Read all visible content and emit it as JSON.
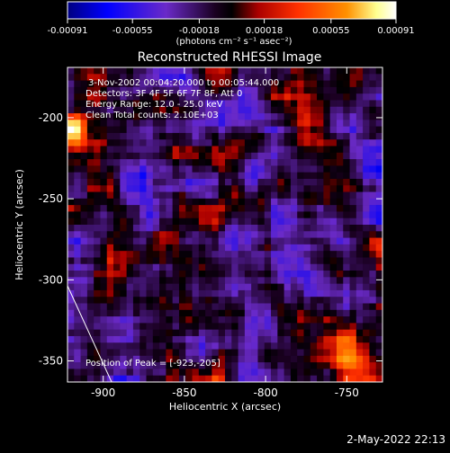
{
  "chart_data": {
    "type": "heatmap",
    "title": "Reconstructed RHESSI Image",
    "xlabel": "Heliocentric X (arcsec)",
    "ylabel": "Heliocentric Y (arcsec)",
    "xlim": [
      -922,
      -728
    ],
    "ylim": [
      -363,
      -169
    ],
    "x_ticks": [
      -900,
      -850,
      -800,
      -750
    ],
    "y_ticks": [
      -200,
      -250,
      -300,
      -350
    ],
    "x_tick_labels": [
      "-900",
      "-850",
      "-800",
      "-750"
    ],
    "y_tick_labels": [
      "-200",
      "-250",
      "-300",
      "-350"
    ],
    "colorbar": {
      "range": [
        -0.00091,
        0.00091
      ],
      "tick_values": [
        -0.00091,
        -0.00055,
        -0.00018,
        0.00018,
        0.00055,
        0.00091
      ],
      "tick_labels": [
        "-0.00091",
        "-0.00055",
        "-0.00018",
        "0.00018",
        "0.00055",
        "0.00091"
      ],
      "unit_label": "(photons cm⁻² s⁻¹ asec⁻²)",
      "colors": [
        "#000080",
        "#0000ff",
        "#6a2ac8",
        "#000000",
        "#aa0000",
        "#ff3000",
        "#ff9000",
        "#ffff90",
        "#ffffff"
      ]
    },
    "annotations": {
      "time_range": "3-Nov-2002 00:04:20.000 to 00:05:44.000",
      "detectors": "Detectors: 3F 4F 5F 6F 7F 8F, Att 0",
      "energy": "Energy Range: 12.0 - 25.0 keV",
      "clean": "Clean    Total counts: 2.10E+03",
      "peak": "Position of Peak = [-923,-205]"
    },
    "grid": false,
    "grid_size": [
      48,
      48
    ]
  },
  "timestamp": "2-May-2022 22:13"
}
